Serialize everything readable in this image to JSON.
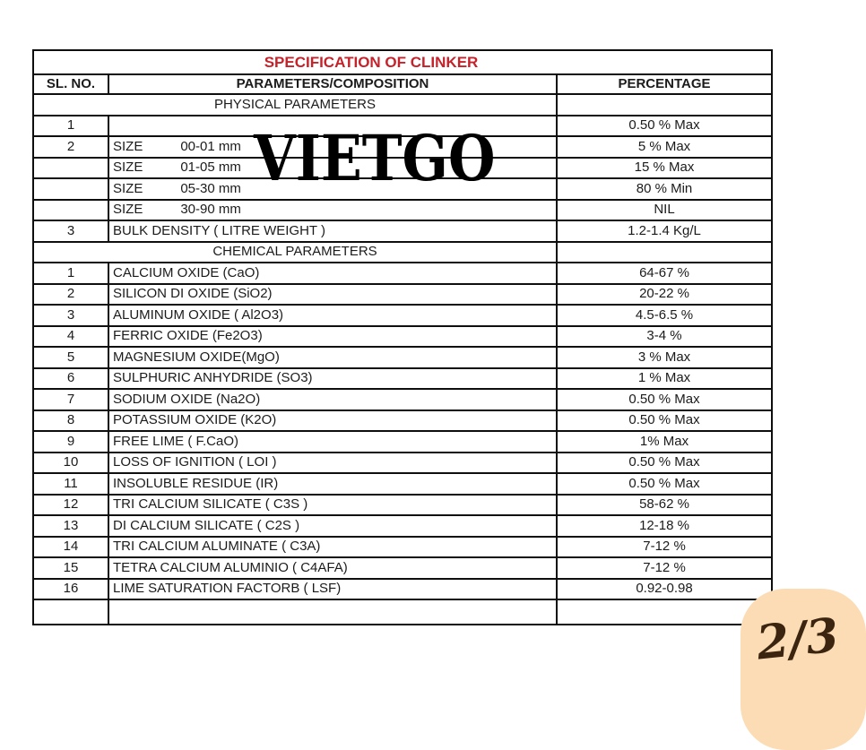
{
  "page": {
    "watermark": "VIETGO",
    "badge": "2/3"
  },
  "colors": {
    "title_red": "#c4232b",
    "badge_background": "#fcdcb4",
    "badge_text": "#3b2510",
    "table_border": "#0e0e0e"
  },
  "table": {
    "title": "SPECIFICATION OF CLINKER",
    "headers": {
      "sl": "SL. NO.",
      "param": "PARAMETERS/COMPOSITION",
      "pct": "PERCENTAGE"
    },
    "section_physical": "PHYSICAL PARAMETERS",
    "section_chemical": "CHEMICAL PARAMETERS",
    "rows": [
      {
        "sl": "1",
        "param": "",
        "param2": "",
        "val": "0.50 % Max"
      },
      {
        "sl": "2",
        "param": "SIZE",
        "param2": "00-01 mm",
        "val": "5 % Max"
      },
      {
        "sl": "",
        "param": "SIZE",
        "param2": "01-05 mm",
        "val": "15 % Max"
      },
      {
        "sl": "",
        "param": "SIZE",
        "param2": "05-30 mm",
        "val": "80 % Min"
      },
      {
        "sl": "",
        "param": "SIZE",
        "param2": "30-90 mm",
        "val": "NIL"
      },
      {
        "sl": "3",
        "param": "BULK DENSITY ( LITRE WEIGHT )",
        "param2": "",
        "val": "1.2-1.4 Kg/L"
      },
      {
        "sl": "1",
        "param": "CALCIUM OXIDE (CaO)",
        "param2": "",
        "val": "64-67 %"
      },
      {
        "sl": "2",
        "param": "SILICON DI OXIDE (SiO2)",
        "param2": "",
        "val": "20-22 %"
      },
      {
        "sl": "3",
        "param": "ALUMINUM OXIDE ( Al2O3)",
        "param2": "",
        "val": "4.5-6.5 %"
      },
      {
        "sl": "4",
        "param": "FERRIC OXIDE (Fe2O3)",
        "param2": "",
        "val": "3-4 %"
      },
      {
        "sl": "5",
        "param": "MAGNESIUM OXIDE(MgO)",
        "param2": "",
        "val": "3 % Max"
      },
      {
        "sl": "6",
        "param": "SULPHURIC ANHYDRIDE (SO3)",
        "param2": "",
        "val": "1 % Max"
      },
      {
        "sl": "7",
        "param": "SODIUM OXIDE (Na2O)",
        "param2": "",
        "val": "0.50 % Max"
      },
      {
        "sl": "8",
        "param": "POTASSIUM OXIDE (K2O)",
        "param2": "",
        "val": "0.50 % Max"
      },
      {
        "sl": "9",
        "param": "FREE LIME ( F.CaO)",
        "param2": "",
        "val": "1% Max"
      },
      {
        "sl": "10",
        "param": "LOSS OF IGNITION ( LOI )",
        "param2": "",
        "val": "0.50 % Max"
      },
      {
        "sl": "11",
        "param": "INSOLUBLE RESIDUE (IR)",
        "param2": "",
        "val": "0.50 % Max"
      },
      {
        "sl": "12",
        "param": "TRI CALCIUM SILICATE ( C3S )",
        "param2": "",
        "val": "58-62 %"
      },
      {
        "sl": "13",
        "param": "DI CALCIUM SILICATE ( C2S )",
        "param2": "",
        "val": "12-18 %"
      },
      {
        "sl": "14",
        "param": "TRI CALCIUM ALUMINATE ( C3A)",
        "param2": "",
        "val": "7-12 %"
      },
      {
        "sl": "15",
        "param": "TETRA  CALCIUM ALUMINIO ( C4AFA)",
        "param2": "",
        "val": "7-12 %"
      },
      {
        "sl": "16",
        "param": "LIME SATURATION FACTORB ( LSF)",
        "param2": "",
        "val": "0.92-0.98"
      },
      {
        "sl": "",
        "param": "",
        "param2": "",
        "val": ""
      }
    ]
  }
}
